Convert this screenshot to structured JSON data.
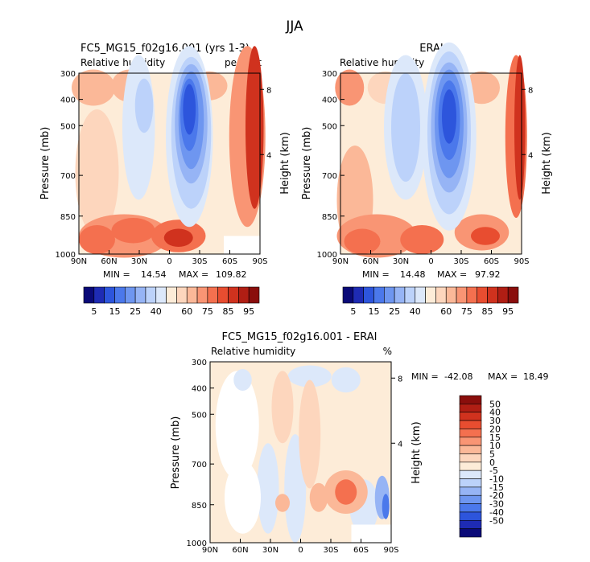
{
  "figure": {
    "title": "JJA",
    "colors": {
      "main_scale": [
        "#0a0a78",
        "#1e2bb4",
        "#2d55dc",
        "#4b78eb",
        "#6e96f0",
        "#96b4f5",
        "#bcd2fa",
        "#dce8fa",
        "#fdecd8",
        "#fdd6bd",
        "#fbb898",
        "#f99574",
        "#f4704f",
        "#e84d30",
        "#d0321e",
        "#b01e14",
        "#8a0e0c"
      ],
      "diff_scale": [
        "#0a0a78",
        "#1e2bb4",
        "#2d55dc",
        "#4b78eb",
        "#6e96f0",
        "#96b4f5",
        "#bcd2fa",
        "#dce8fa",
        "#fdecd8",
        "#fdd6bd",
        "#fbb898",
        "#f99574",
        "#f4704f",
        "#e84d30",
        "#d0321e",
        "#b01e14",
        "#8a0e0c"
      ]
    }
  },
  "chart_data": [
    {
      "type": "heatmap",
      "title": "FC5_MG15_f02g16.001 (yrs 1-3)",
      "subtitle_left": "Relative humidity",
      "subtitle_right": "percent",
      "ylabel": "Pressure (mb)",
      "ylabel_right": "Height (km)",
      "x_ticks": [
        "90N",
        "60N",
        "30N",
        "0",
        "30S",
        "60S",
        "90S"
      ],
      "y_ticks": [
        "300",
        "400",
        "500",
        "700",
        "850",
        "1000"
      ],
      "y_right_ticks": [
        "8",
        "4"
      ],
      "stats": {
        "min_label": "MIN =",
        "min": "14.54",
        "max_label": "MAX =",
        "max": "109.82"
      },
      "colorbar_labels": [
        "5",
        "15",
        "25",
        "40",
        "60",
        "75",
        "85",
        "95"
      ]
    },
    {
      "type": "heatmap",
      "title": "ERAI",
      "subtitle_left": "Relative humidity",
      "subtitle_right": "%",
      "ylabel": "Pressure (mb)",
      "ylabel_right": "Height (km)",
      "x_ticks": [
        "90N",
        "60N",
        "30N",
        "0",
        "30S",
        "60S",
        "90S"
      ],
      "y_ticks": [
        "300",
        "400",
        "500",
        "700",
        "850",
        "1000"
      ],
      "y_right_ticks": [
        "8",
        "4"
      ],
      "stats": {
        "min_label": "MIN =",
        "min": "14.48",
        "max_label": "MAX =",
        "max": "97.92"
      },
      "colorbar_labels": [
        "5",
        "15",
        "25",
        "40",
        "60",
        "75",
        "85",
        "95"
      ]
    },
    {
      "type": "heatmap",
      "title": "FC5_MG15_f02g16.001 - ERAI",
      "subtitle_left": "Relative humidity",
      "subtitle_right": "%",
      "ylabel": "Pressure (mb)",
      "ylabel_right": "Height (km)",
      "x_ticks": [
        "90N",
        "60N",
        "30N",
        "0",
        "30S",
        "60S",
        "90S"
      ],
      "y_ticks": [
        "300",
        "400",
        "500",
        "700",
        "850",
        "1000"
      ],
      "y_right_ticks": [
        "8",
        "4"
      ],
      "stats": {
        "min_label": "MIN =",
        "min": "-42.08",
        "max_label": "MAX =",
        "max": "18.49"
      },
      "colorbar_labels": [
        "50",
        "40",
        "30",
        "20",
        "15",
        "10",
        "5",
        "0",
        "-5",
        "-10",
        "-15",
        "-20",
        "-30",
        "-40",
        "-50"
      ]
    }
  ]
}
